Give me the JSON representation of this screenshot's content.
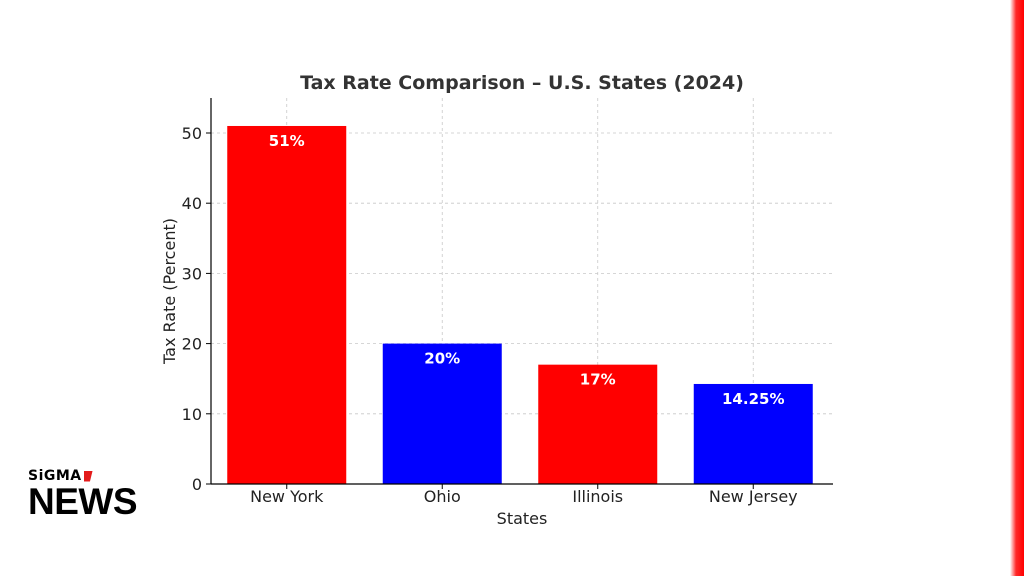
{
  "chart_data": {
    "type": "bar",
    "title": "Tax Rate Comparison – U.S. States (2024)",
    "xlabel": "States",
    "ylabel": "Tax Rate (Percent)",
    "categories": [
      "New York",
      "Ohio",
      "Illinois",
      "New Jersey"
    ],
    "values": [
      51,
      20,
      17,
      14.25
    ],
    "data_labels": [
      "51%",
      "20%",
      "17%",
      "14.25%"
    ],
    "bar_colors": [
      "#ff0000",
      "#0000ff",
      "#ff0000",
      "#0000ff"
    ],
    "ylim": [
      0,
      55
    ],
    "yticks": [
      0,
      10,
      20,
      30,
      40,
      50
    ],
    "grid": true
  },
  "logo": {
    "top_text": "SiGMA",
    "main_text": "NEWS",
    "accent_color": "#e31b1b"
  },
  "page": {
    "background": "#ffffff",
    "edge_accent_color": "#ff0000"
  }
}
